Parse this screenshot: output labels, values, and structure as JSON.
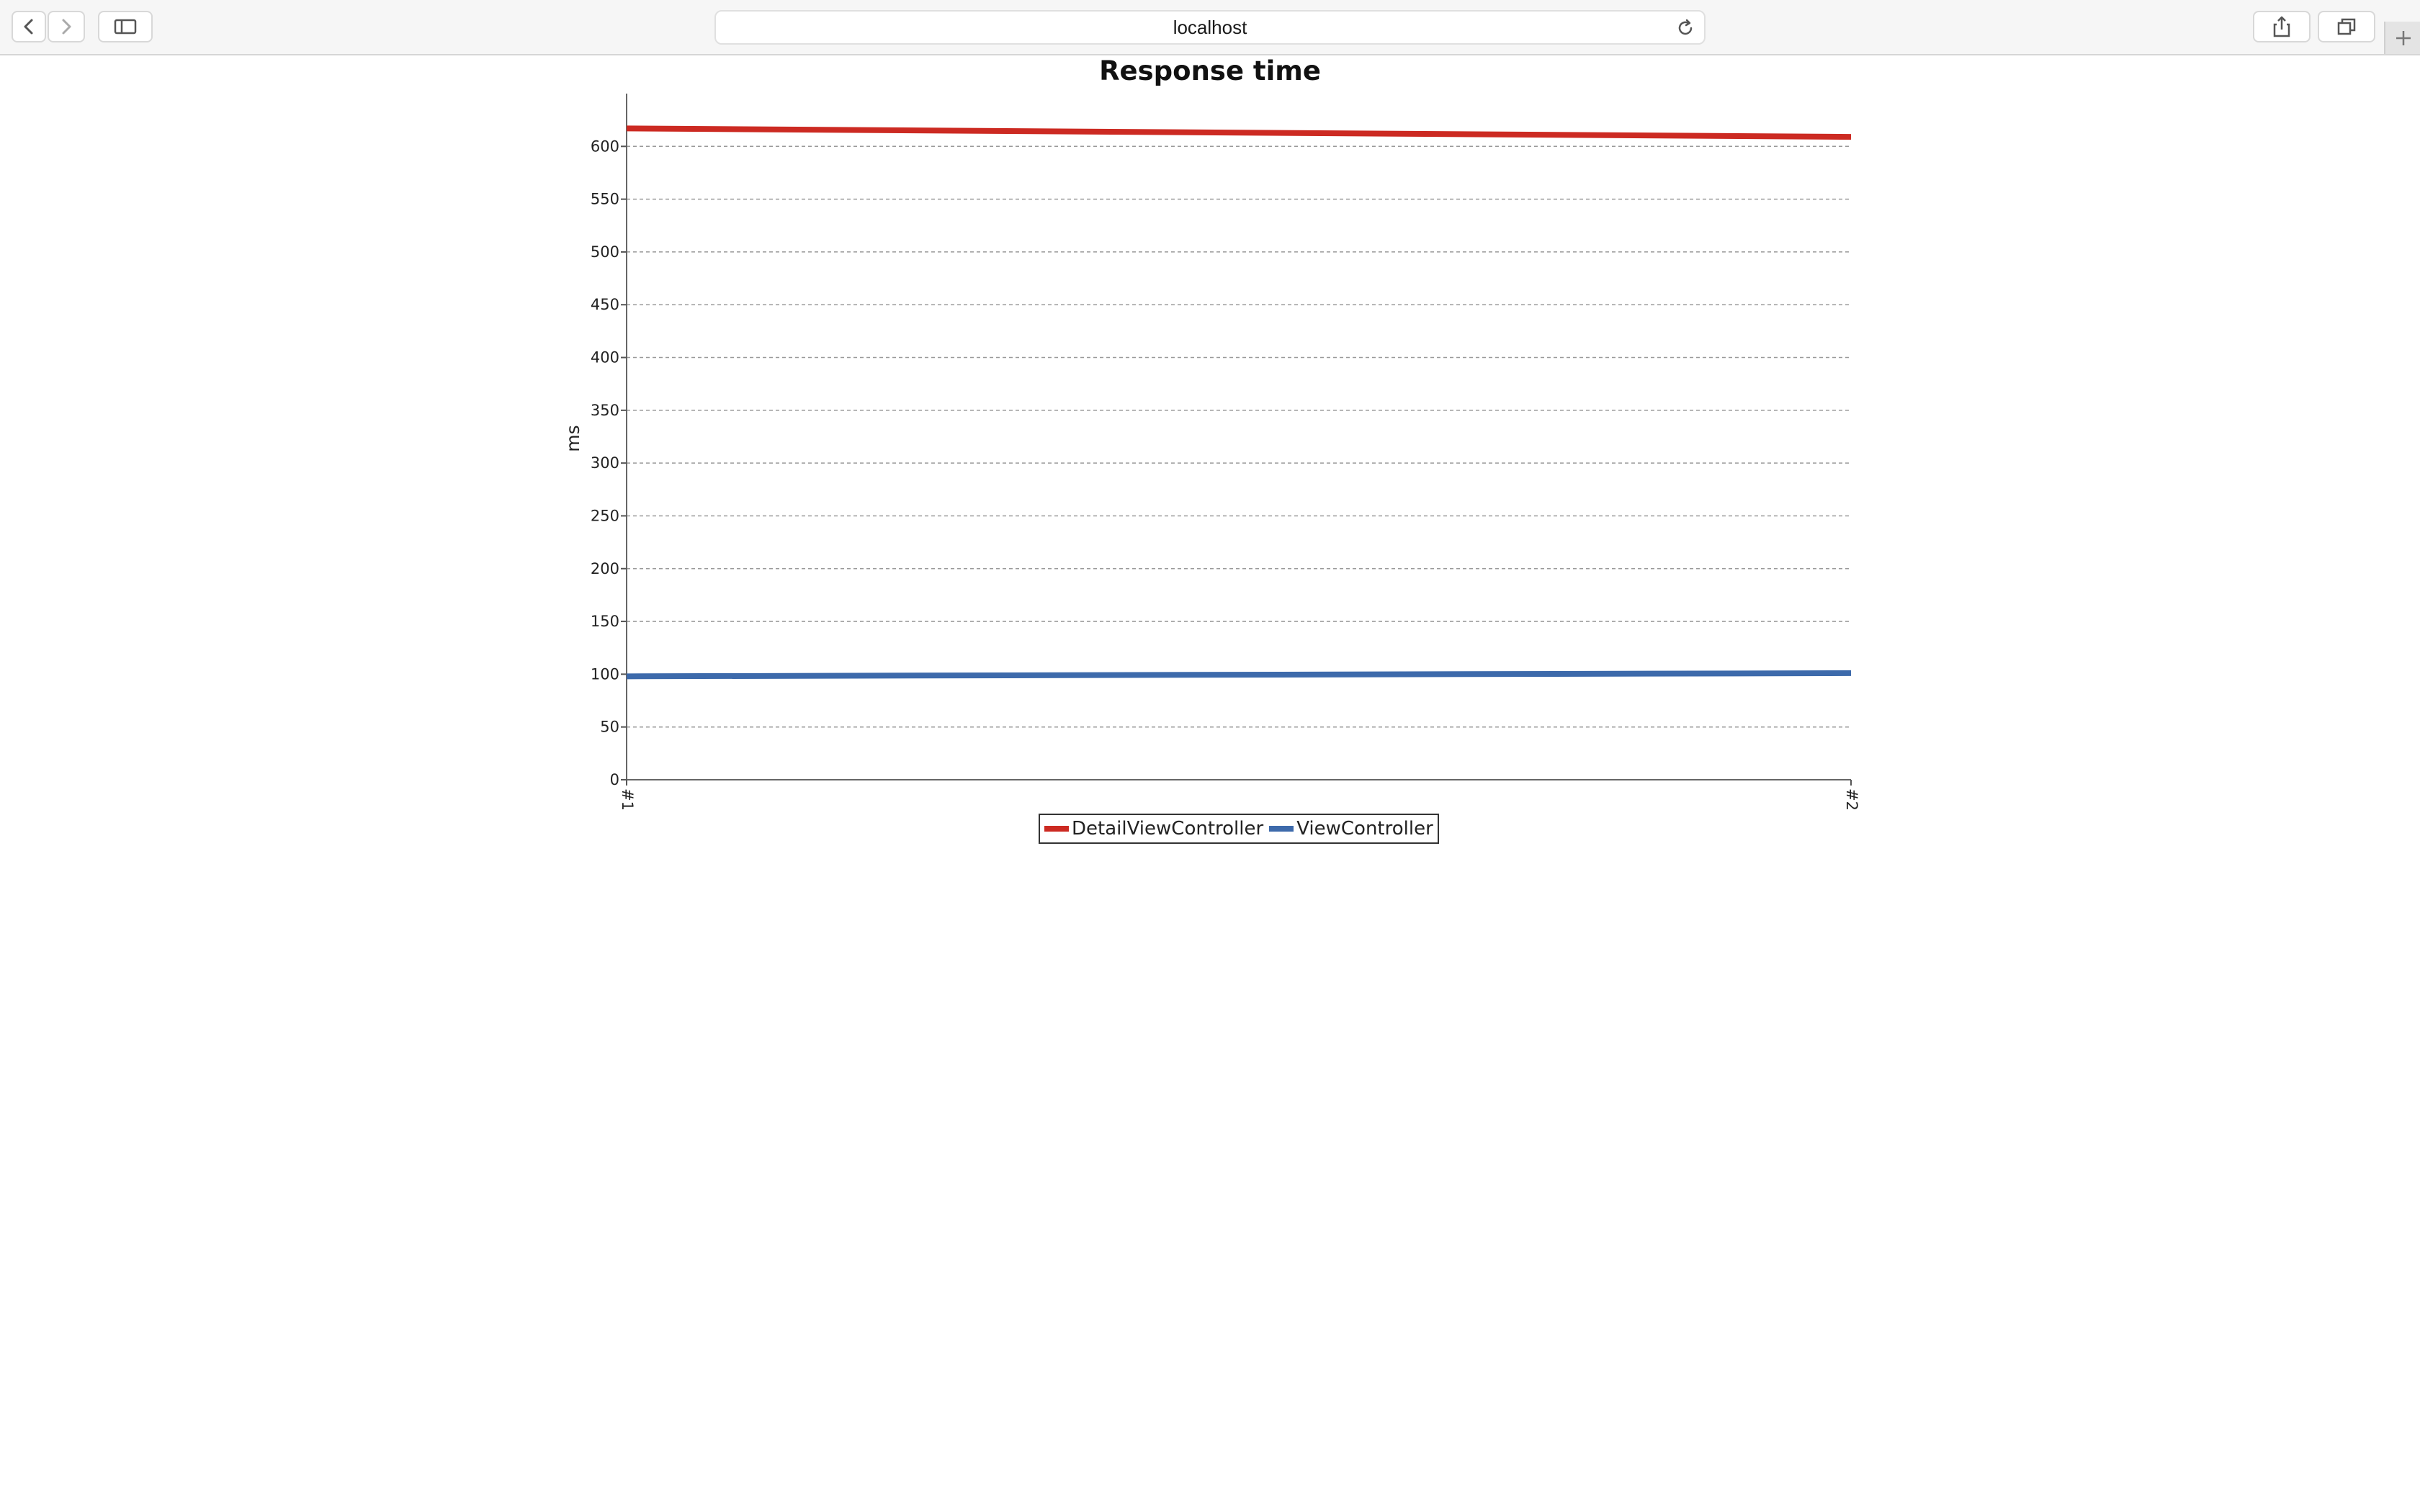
{
  "browser": {
    "address": "localhost",
    "icons": [
      "back-icon",
      "forward-icon",
      "sidebar-icon",
      "reload-icon",
      "share-icon",
      "tabs-icon",
      "plus-icon"
    ]
  },
  "chart_data": {
    "type": "line",
    "title": "Response time",
    "xlabel": "",
    "ylabel": "ms",
    "categories": [
      "#1",
      "#2"
    ],
    "ylim": [
      0,
      650
    ],
    "yticks": [
      0,
      50,
      100,
      150,
      200,
      250,
      300,
      350,
      400,
      450,
      500,
      550,
      600
    ],
    "grid": true,
    "legend_position": "bottom-center",
    "series": [
      {
        "name": "DetailViewController",
        "color": "#cc2a22",
        "values": [
          617,
          609
        ]
      },
      {
        "name": "ViewController",
        "color": "#3d6aab",
        "values": [
          98,
          101
        ]
      }
    ]
  }
}
